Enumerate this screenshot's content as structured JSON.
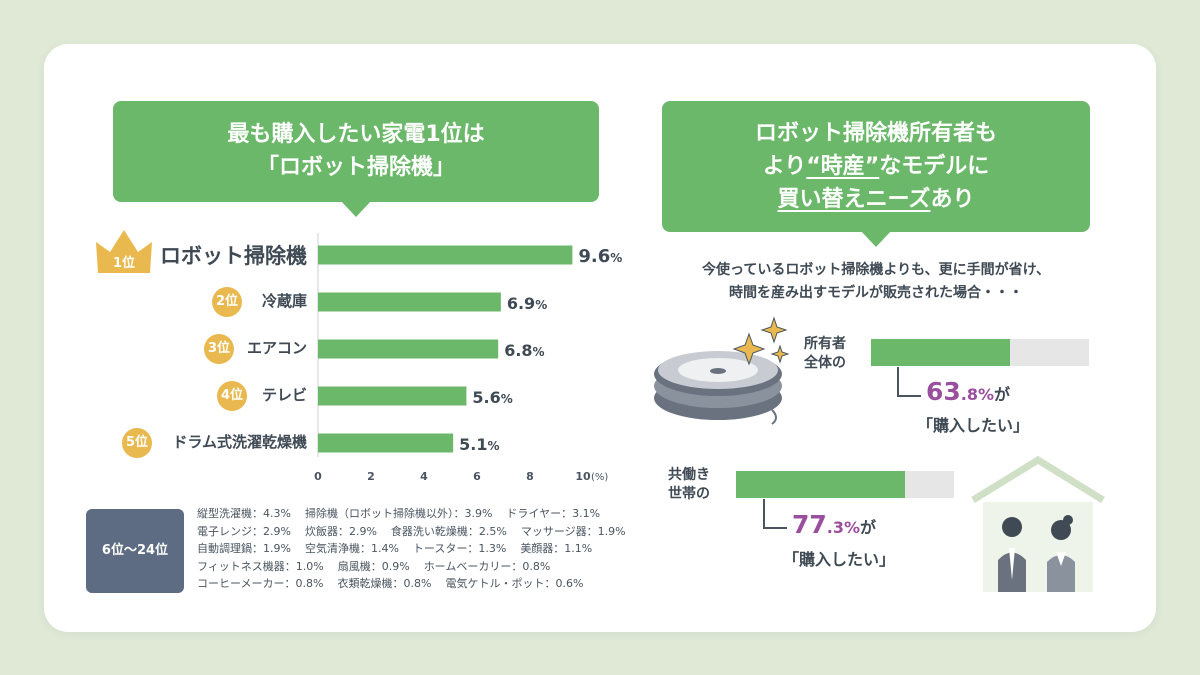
{
  "left": {
    "title_line1": "最も購入したい家電1位は",
    "title_line2": "「ロボット掃除機」",
    "first_badge": "1位",
    "other_box_label": "6位〜24位",
    "others_rows": [
      [
        "縦型洗濯機：4.3%",
        "掃除機（ロボット掃除機以外）：3.9%",
        "ドライヤー：3.1%"
      ],
      [
        "電子レンジ：2.9%",
        "炊飯器：2.9%",
        "食器洗い乾燥機：2.5%",
        "マッサージ器：1.9%"
      ],
      [
        "自動調理鍋：1.9%",
        "空気清浄機：1.4%",
        "トースター：1.3%",
        "美顔器：1.1%"
      ],
      [
        "フィットネス機器：1.0%",
        "扇風機：0.9%",
        "ホームベーカリー：0.8%"
      ],
      [
        "コーヒーメーカー：0.8%",
        "衣類乾燥機：0.8%",
        "電気ケトル・ポット：0.6%"
      ]
    ]
  },
  "chart_data": {
    "type": "bar",
    "orientation": "horizontal",
    "categories": [
      "ロボット掃除機",
      "冷蔵庫",
      "エアコン",
      "テレビ",
      "ドラム式洗濯乾燥機"
    ],
    "ranks": [
      "1位",
      "2位",
      "3位",
      "4位",
      "5位"
    ],
    "values": [
      9.6,
      6.9,
      6.8,
      5.6,
      5.1
    ],
    "value_labels": [
      "9.6",
      "6.9",
      "6.8",
      "5.6",
      "5.1"
    ],
    "value_unit": "%",
    "xlim": [
      0,
      10
    ],
    "xticks": [
      "0",
      "2",
      "4",
      "6",
      "8",
      "10"
    ],
    "xunit": "(%)",
    "bar_color": "#6cb86a"
  },
  "right": {
    "title_line1": "ロボット掃除機所有者も",
    "title_line2_pre": "より",
    "title_line2_em": "“時産”",
    "title_line2_post": "なモデルに",
    "title_line3_u": "買い替えニーズ",
    "title_line3_post": "あり",
    "intro_line1": "今使っているロボット掃除機よりも、更に手間が省け、",
    "intro_line2": "時間を産み出すモデルが販売された場合・・・",
    "groups": [
      {
        "label_line1": "所有者",
        "label_line2": "全体の",
        "value": 63.8,
        "pct_int": "63",
        "pct_dec": ".8%",
        "ga": "が",
        "phrase": "「購入したい」"
      },
      {
        "label_line1": "共働き",
        "label_line2": "世帯の",
        "value": 77.3,
        "pct_int": "77",
        "pct_dec": ".3%",
        "ga": "が",
        "phrase": "「購入したい」"
      }
    ]
  },
  "colors": {
    "green": "#6cb86a",
    "gold": "#e9b94f",
    "purple": "#9a4f9e",
    "slate": "#5e6c83",
    "bg": "#dfe9d6"
  }
}
